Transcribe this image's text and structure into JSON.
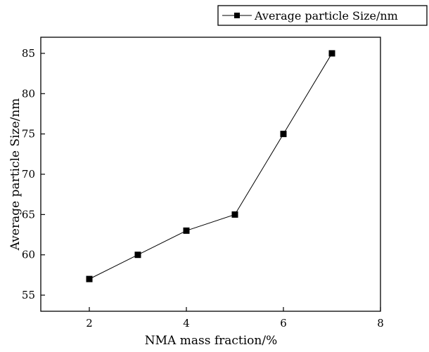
{
  "chart_data": {
    "type": "line",
    "title": "",
    "xlabel": "NMA mass fraction/%",
    "ylabel": "Average particle Size/nm",
    "xlim": [
      1,
      8
    ],
    "ylim": [
      53,
      87
    ],
    "xticks": [
      2,
      4,
      6,
      8
    ],
    "yticks": [
      55,
      60,
      65,
      70,
      75,
      80,
      85
    ],
    "grid": false,
    "legend_position": "top-right, outside plot area",
    "series": [
      {
        "name": "Average particle Size/nm",
        "marker": "square",
        "color": "#000000",
        "x": [
          2,
          3,
          4,
          5,
          6,
          7
        ],
        "y": [
          57,
          60,
          63,
          65,
          75,
          85
        ]
      }
    ]
  }
}
